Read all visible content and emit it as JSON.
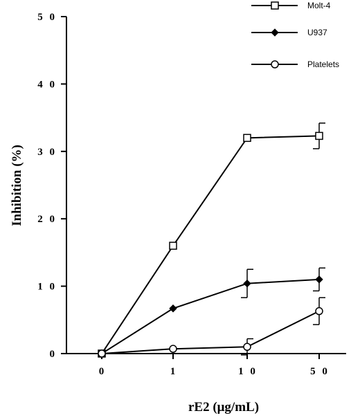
{
  "chart_data": {
    "type": "line",
    "x_categories": [
      "0",
      "1",
      "1 0",
      "5 0"
    ],
    "y_ticks": [
      "0",
      "1 0",
      "2 0",
      "3 0",
      "4 0",
      "5 0"
    ],
    "y_tick_values": [
      0,
      10,
      20,
      30,
      40,
      50
    ],
    "ylim": [
      0,
      50
    ],
    "xlabel": "rE2   (μg/mL)",
    "ylabel": "Inhibition  (%)",
    "legend_position": "top-right",
    "series": [
      {
        "name": "Molt-4",
        "marker": "square-open",
        "values": [
          0,
          16,
          32,
          32.3
        ],
        "error": [
          null,
          null,
          null,
          1.9
        ]
      },
      {
        "name": "U937",
        "marker": "diamond-filled",
        "values": [
          0,
          6.7,
          10.4,
          11.0
        ],
        "error": [
          null,
          null,
          2.1,
          1.7
        ]
      },
      {
        "name": "Platelets",
        "marker": "circle-open",
        "values": [
          0,
          0.7,
          1.0,
          6.3
        ],
        "error": [
          null,
          null,
          1.2,
          2.0
        ]
      }
    ]
  }
}
